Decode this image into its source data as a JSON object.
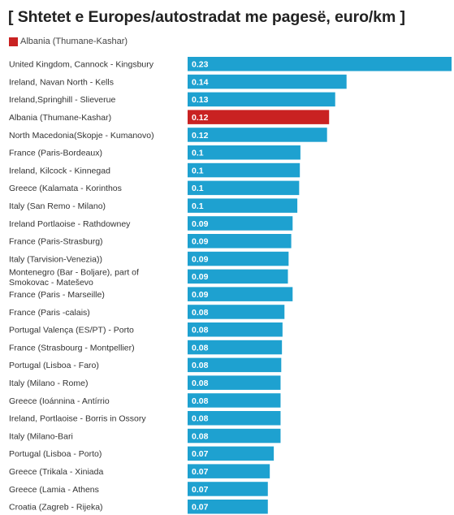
{
  "chart_data": {
    "type": "bar",
    "orientation": "horizontal",
    "title": "[ Shtetet e Europes/autostradat me pagesë, euro/km ]",
    "legend": {
      "label": "Albania (Thumane-Kashar)",
      "color": "#c92222",
      "placement": "top-left"
    },
    "default_color": "#1ea1d0",
    "highlight_color": "#c92222",
    "xlim": [
      0,
      0.23
    ],
    "grid": false,
    "categories": [
      "United Kingdom, Cannock - Kingsbury",
      "Ireland, Navan North - Kells",
      "Ireland,Springhill - Slieverue",
      "Albania (Thumane-Kashar)",
      "North Macedonia(Skopje - Kumanovo)",
      "France (Paris-Bordeaux)",
      "Ireland, Kilcock - Kinnegad",
      "Greece (Kalamata - Korinthos",
      "Italy (San Remo - Milano)",
      "Ireland Portlaoise - Rathdowney",
      "France (Paris-Strasburg)",
      "Italy (Tarvision-Venezia))",
      "Montenegro (Bar - Boljare), part of Smokovac - Mateševo",
      "France (Paris - Marseille)",
      "France (Paris -calais)",
      "Portugal Valença (ES/PT) - Porto",
      "France (Strasbourg - Montpellier)",
      "Portugal (Lisboa - Faro)",
      "Italy (Milano - Rome)",
      "Greece (Ioánnina - Antírrio",
      "Ireland, Portlaoise - Borris in Ossory",
      "Italy (Milano-Bari",
      "Portugal (Lisboa - Porto)",
      "Greece (Trikala - Xiniada",
      "Greece (Lamia - Athens",
      "Croatia (Zagreb - Rijeka)"
    ],
    "values": [
      0.23,
      0.14,
      0.13,
      0.12,
      0.12,
      0.1,
      0.1,
      0.1,
      0.1,
      0.09,
      0.09,
      0.09,
      0.09,
      0.09,
      0.08,
      0.08,
      0.08,
      0.08,
      0.08,
      0.08,
      0.08,
      0.08,
      0.07,
      0.07,
      0.07,
      0.07
    ],
    "display_values": [
      "0.23",
      "0.14",
      "0.13",
      "0.12",
      "0.12",
      "0.1",
      "0.1",
      "0.1",
      "0.1",
      "0.09",
      "0.09",
      "0.09",
      "0.09",
      "0.09",
      "0.08",
      "0.08",
      "0.08",
      "0.08",
      "0.08",
      "0.08",
      "0.08",
      "0.08",
      "0.07",
      "0.07",
      "0.07",
      "0.07"
    ],
    "widths": [
      0.23,
      0.1385,
      0.1286,
      0.1233,
      0.1215,
      0.0983,
      0.0978,
      0.0972,
      0.0956,
      0.0915,
      0.0903,
      0.088,
      0.0874,
      0.0915,
      0.0844,
      0.0827,
      0.0822,
      0.0816,
      0.081,
      0.081,
      0.081,
      0.081,
      0.0751,
      0.0716,
      0.0699,
      0.0699
    ],
    "highlight_index": 3
  }
}
